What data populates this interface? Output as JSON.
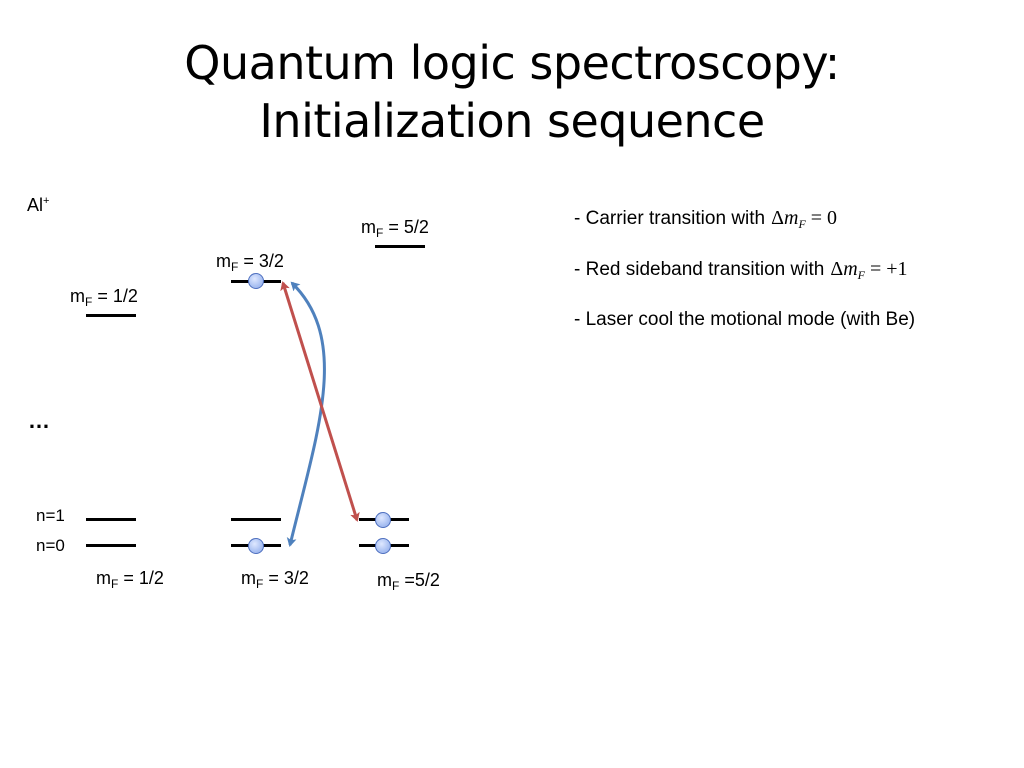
{
  "title": {
    "line1": "Quantum logic spectroscopy:",
    "line2": "Initialization sequence"
  },
  "species": {
    "base": "Al",
    "sup": "+"
  },
  "upper_labels": [
    {
      "pre": "m",
      "sub": "F",
      "post": " = 1/2"
    },
    {
      "pre": "m",
      "sub": "F",
      "post": " = 3/2"
    },
    {
      "pre": "m",
      "sub": "F",
      "post": " = 5/2"
    }
  ],
  "ellipsis": "…",
  "motional_labels": {
    "n1": "n=1",
    "n0": "n=0"
  },
  "lower_labels": [
    {
      "pre": "m",
      "sub": "F",
      "post": " = 1/2"
    },
    {
      "pre": "m",
      "sub": "F",
      "post": " = 3/2"
    },
    {
      "pre": "m",
      "sub": "F",
      "post": " =5/2"
    }
  ],
  "bullets": [
    {
      "text": "- Carrier transition with",
      "math_delta": "Δ",
      "math_m": "m",
      "math_sub": "F",
      "math_rhs": " = 0"
    },
    {
      "text": "- Red sideband transition with",
      "math_delta": "Δ",
      "math_m": "m",
      "math_sub": "F",
      "math_rhs": " = +1"
    },
    {
      "text": "- Laser cool the motional mode (with Be)"
    }
  ],
  "colors": {
    "carrier_arrow": "#4f81bd",
    "red_sideband_arrow": "#c0504d",
    "population_dot": "#a9c0f2"
  }
}
